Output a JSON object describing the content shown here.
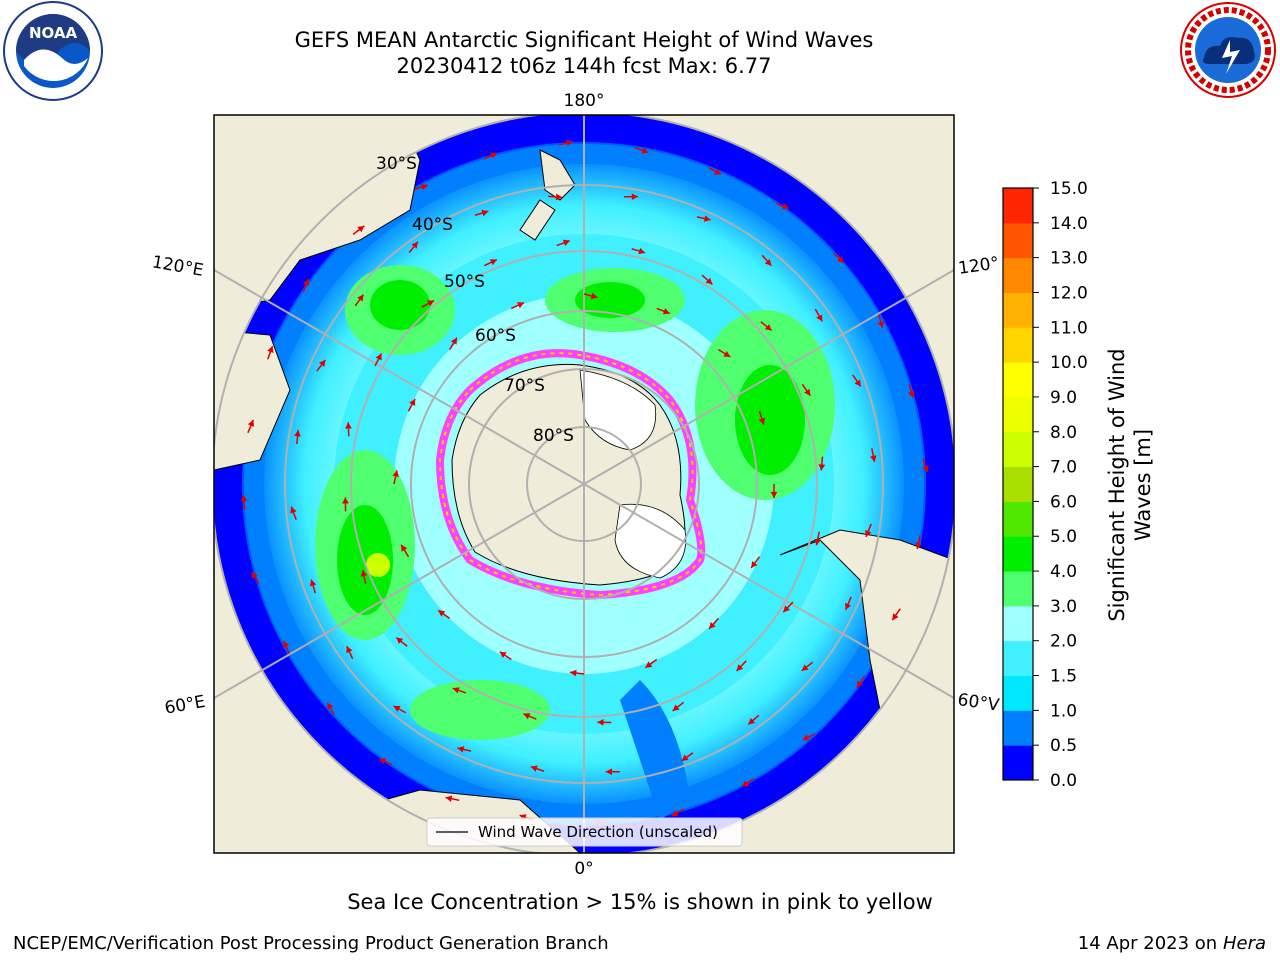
{
  "header": {
    "title_line1": "GEFS MEAN Antarctic Significant Height of Wind Waves",
    "title_line2": "20230412 t06z 144h fcst   Max: 6.77"
  },
  "logos": {
    "left": {
      "icon": "noaa-logo",
      "text": "NOAA",
      "ring_text": "NATIONAL OCEANIC AND ATMOSPHERIC ADMINISTRATION · U.S. DEPARTMENT OF COMMERCE"
    },
    "right": {
      "icon": "nws-logo",
      "ring_text": "NATIONAL WEATHER SERVICE"
    }
  },
  "map": {
    "longitude_labels": {
      "top": "180°",
      "bottom": "0°",
      "upper_left": "120°E",
      "upper_right": "120°",
      "lower_left": "60°E",
      "lower_right": "60°V"
    },
    "latitude_labels": [
      "30°S",
      "40°S",
      "50°S",
      "60°S",
      "70°S",
      "80°S"
    ],
    "legend_text": "Wind Wave Direction (unscaled)",
    "arrow_color": "#e00000",
    "land_color": "#efecd9",
    "ocean_low_color": "#0000ff"
  },
  "colorbar": {
    "label_line1": "Significant Height of Wind",
    "label_line2": "Waves [m]",
    "ticks": [
      "0.0",
      "0.5",
      "1.0",
      "1.5",
      "2.0",
      "3.0",
      "4.0",
      "5.0",
      "6.0",
      "7.0",
      "8.0",
      "9.0",
      "10.0",
      "11.0",
      "12.0",
      "13.0",
      "14.0",
      "15.0"
    ],
    "colors": [
      "#0000ff",
      "#0080ff",
      "#00e8ff",
      "#40f0ff",
      "#a0ffff",
      "#50ff70",
      "#00ee00",
      "#50e800",
      "#aae000",
      "#ccff00",
      "#eeff00",
      "#ffff00",
      "#ffd500",
      "#ffb000",
      "#ff8800",
      "#ff5500",
      "#ff2500"
    ]
  },
  "footer": {
    "caption": "Sea Ice Concentration > 15% is shown in pink to yellow",
    "org": "NCEP/EMC/Verification Post Processing Product Generation Branch",
    "date": "14 Apr 2023 on ",
    "machine": "Hera"
  }
}
